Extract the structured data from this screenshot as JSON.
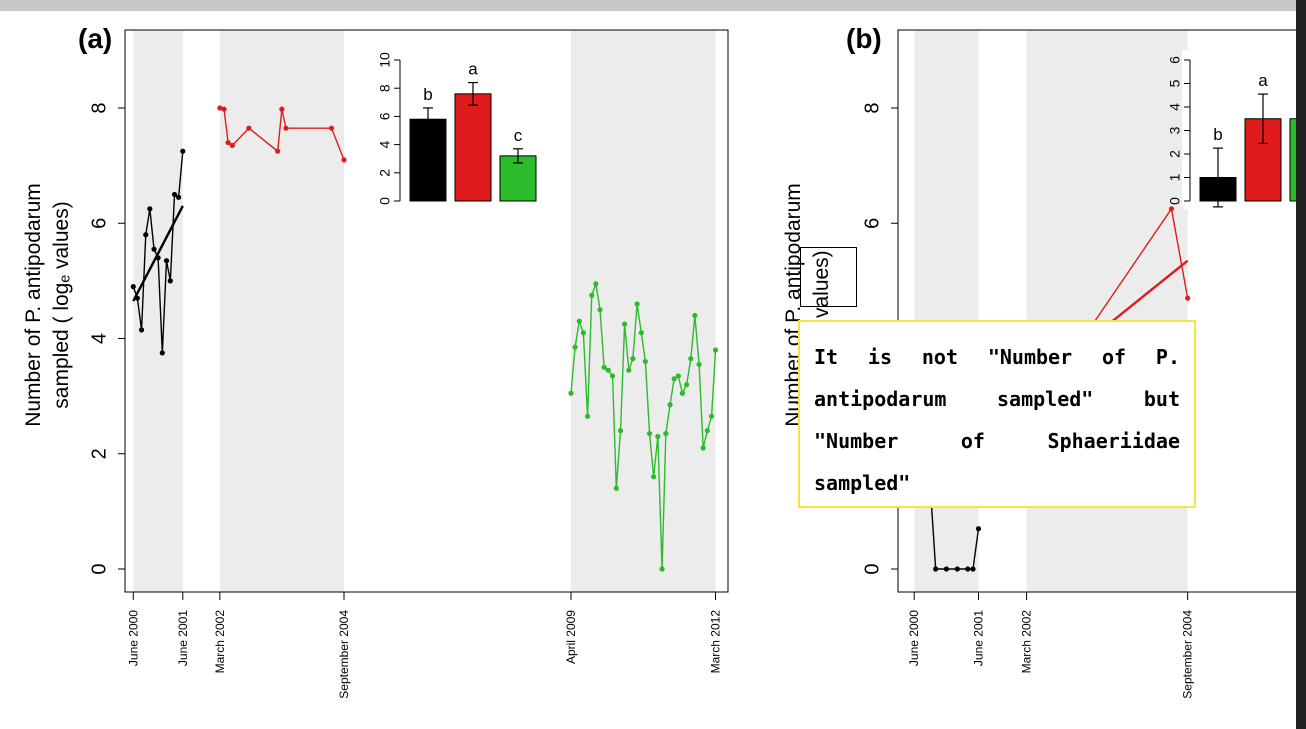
{
  "annotation": {
    "text": "It is not \"Number of P. antipodarum sampled\" but \"Number of Sphaeriidae sampled\""
  },
  "chart_data": [
    {
      "type": "line",
      "panel_label": "(a)",
      "ylabel_line1": "Number of P. antipodarum",
      "ylabel_line2": "sampled ( logₑ values)",
      "ylim": [
        0,
        9.5
      ],
      "yticks": [
        0,
        2,
        4,
        6,
        8
      ],
      "xlim": [
        "2000-04-01",
        "2012-06-01"
      ],
      "xticks": [
        {
          "date": "2000-06-01",
          "label": "June 2000"
        },
        {
          "date": "2001-06-01",
          "label": "June 2001"
        },
        {
          "date": "2002-03-01",
          "label": "March 2002"
        },
        {
          "date": "2004-09-01",
          "label": "September 2004"
        },
        {
          "date": "2009-04-01",
          "label": "April 2009"
        },
        {
          "date": "2012-03-01",
          "label": "March 2012"
        }
      ],
      "shaded_periods": [
        [
          "2000-06-01",
          "2001-06-01"
        ],
        [
          "2002-03-01",
          "2004-09-01"
        ],
        [
          "2009-04-01",
          "2012-03-01"
        ]
      ],
      "series": [
        {
          "color": "#000000",
          "points": [
            [
              "2000-06-01",
              4.9
            ],
            [
              "2000-07-01",
              4.7
            ],
            [
              "2000-08-01",
              4.15
            ],
            [
              "2000-09-01",
              5.8
            ],
            [
              "2000-10-01",
              6.25
            ],
            [
              "2000-11-01",
              5.55
            ],
            [
              "2000-12-01",
              5.4
            ],
            [
              "2001-01-01",
              3.75
            ],
            [
              "2001-02-01",
              5.35
            ],
            [
              "2001-03-01",
              5.0
            ],
            [
              "2001-04-01",
              6.5
            ],
            [
              "2001-05-01",
              6.45
            ],
            [
              "2001-06-01",
              7.25
            ]
          ],
          "trend": [
            [
              "2000-06-01",
              4.65
            ],
            [
              "2001-06-01",
              6.3
            ]
          ]
        },
        {
          "color": "#e01b1b",
          "points": [
            [
              "2002-03-01",
              8.0
            ],
            [
              "2002-04-01",
              7.98
            ],
            [
              "2002-05-01",
              7.4
            ],
            [
              "2002-06-01",
              7.35
            ],
            [
              "2002-10-01",
              7.65
            ],
            [
              "2003-05-01",
              7.25
            ],
            [
              "2003-06-01",
              7.98
            ],
            [
              "2003-07-01",
              7.65
            ],
            [
              "2004-06-01",
              7.65
            ],
            [
              "2004-09-01",
              7.1
            ]
          ]
        },
        {
          "color": "#2bbb2b",
          "points": [
            [
              "2009-04-01",
              3.05
            ],
            [
              "2009-05-01",
              3.85
            ],
            [
              "2009-06-01",
              4.3
            ],
            [
              "2009-07-01",
              4.1
            ],
            [
              "2009-08-01",
              2.65
            ],
            [
              "2009-09-01",
              4.75
            ],
            [
              "2009-10-01",
              4.95
            ],
            [
              "2009-11-01",
              4.5
            ],
            [
              "2009-12-01",
              3.5
            ],
            [
              "2010-01-01",
              3.45
            ],
            [
              "2010-02-01",
              3.35
            ],
            [
              "2010-03-01",
              1.4
            ],
            [
              "2010-04-01",
              2.4
            ],
            [
              "2010-05-01",
              4.25
            ],
            [
              "2010-06-01",
              3.45
            ],
            [
              "2010-07-01",
              3.65
            ],
            [
              "2010-08-01",
              4.6
            ],
            [
              "2010-09-01",
              4.1
            ],
            [
              "2010-10-01",
              3.6
            ],
            [
              "2010-11-01",
              2.35
            ],
            [
              "2010-12-01",
              1.6
            ],
            [
              "2011-01-01",
              2.3
            ],
            [
              "2011-02-01",
              0.0
            ],
            [
              "2011-03-01",
              2.35
            ],
            [
              "2011-04-01",
              2.85
            ],
            [
              "2011-05-01",
              3.3
            ],
            [
              "2011-06-01",
              3.35
            ],
            [
              "2011-07-01",
              3.05
            ],
            [
              "2011-08-01",
              3.2
            ],
            [
              "2011-09-01",
              3.65
            ],
            [
              "2011-10-01",
              4.4
            ],
            [
              "2011-11-01",
              3.55
            ],
            [
              "2011-12-01",
              2.1
            ],
            [
              "2012-01-01",
              2.4
            ],
            [
              "2012-02-01",
              2.65
            ],
            [
              "2012-03-01",
              3.8
            ]
          ]
        }
      ],
      "inset": {
        "type": "bar",
        "ylim": [
          0,
          10
        ],
        "yticks": [
          0,
          2,
          4,
          6,
          8,
          10
        ],
        "bars": [
          {
            "value": 5.8,
            "err": 0.8,
            "letter": "b",
            "color": "#000000"
          },
          {
            "value": 7.6,
            "err": 0.8,
            "letter": "a",
            "color": "#e01b1b"
          },
          {
            "value": 3.2,
            "err": 0.5,
            "letter": "c",
            "color": "#2bbb2b"
          }
        ]
      }
    },
    {
      "type": "line",
      "panel_label": "(b)",
      "ylabel_line1": "Number of P. antipodarum",
      "ylabel_line2": "logₑ values)",
      "ylim": [
        0,
        9.5
      ],
      "yticks": [
        0,
        6,
        8
      ],
      "xlim": [
        "2000-03-01",
        "2006-06-01"
      ],
      "xticks": [
        {
          "date": "2000-06-01",
          "label": "June 2000"
        },
        {
          "date": "2001-06-01",
          "label": "June 2001"
        },
        {
          "date": "2002-03-01",
          "label": "March 2002"
        },
        {
          "date": "2004-09-01",
          "label": "September 2004"
        }
      ],
      "shaded_periods": [
        [
          "2000-06-01",
          "2001-06-01"
        ],
        [
          "2002-03-01",
          "2004-09-01"
        ]
      ],
      "series": [
        {
          "color": "#000000",
          "points": [
            [
              "2000-09-01",
              1.4
            ],
            [
              "2000-10-01",
              0.0
            ],
            [
              "2000-12-01",
              0.0
            ],
            [
              "2001-02-01",
              0.0
            ],
            [
              "2001-04-01",
              0.0
            ],
            [
              "2001-05-01",
              0.0
            ],
            [
              "2001-06-01",
              0.7
            ]
          ]
        },
        {
          "color": "#e01b1b",
          "points": [
            [
              "2003-03-01",
              4.2
            ],
            [
              "2004-06-01",
              6.25
            ],
            [
              "2004-09-01",
              4.7
            ]
          ],
          "trend": [
            [
              "2003-03-01",
              4.0
            ],
            [
              "2004-09-01",
              5.35
            ]
          ]
        }
      ],
      "inset": {
        "type": "bar",
        "ylim": [
          0,
          6
        ],
        "yticks": [
          0,
          1,
          2,
          3,
          4,
          5,
          6
        ],
        "bars": [
          {
            "value": 1.0,
            "err": 1.25,
            "letter": "b",
            "color": "#000000"
          },
          {
            "value": 3.5,
            "err": 1.05,
            "letter": "a",
            "color": "#e01b1b"
          },
          {
            "value": 3.5,
            "err": 0,
            "letter": "",
            "color": "#2bbb2b"
          }
        ]
      }
    }
  ]
}
